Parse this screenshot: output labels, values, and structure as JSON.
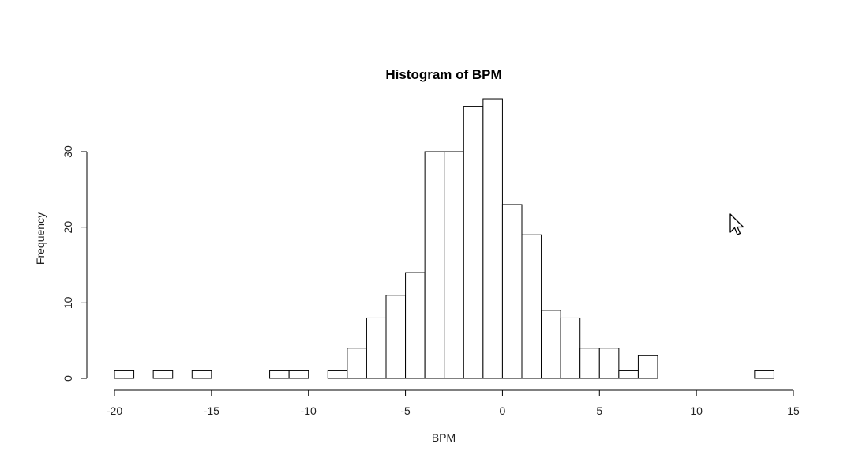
{
  "chart_data": {
    "type": "histogram",
    "title": "Histogram of BPM",
    "xlabel": "BPM",
    "ylabel": "Frequency",
    "bin_width": 1,
    "xlim": [
      -20,
      15
    ],
    "ylim": [
      0,
      37
    ],
    "x_ticks": [
      -20,
      -15,
      -10,
      -5,
      0,
      5,
      10,
      15
    ],
    "y_ticks": [
      0,
      10,
      20,
      30
    ],
    "bins": [
      {
        "start": -20,
        "end": -19,
        "count": 1
      },
      {
        "start": -19,
        "end": -18,
        "count": 0
      },
      {
        "start": -18,
        "end": -17,
        "count": 1
      },
      {
        "start": -17,
        "end": -16,
        "count": 0
      },
      {
        "start": -16,
        "end": -15,
        "count": 1
      },
      {
        "start": -15,
        "end": -14,
        "count": 0
      },
      {
        "start": -14,
        "end": -13,
        "count": 0
      },
      {
        "start": -13,
        "end": -12,
        "count": 0
      },
      {
        "start": -12,
        "end": -11,
        "count": 1
      },
      {
        "start": -11,
        "end": -10,
        "count": 1
      },
      {
        "start": -10,
        "end": -9,
        "count": 0
      },
      {
        "start": -9,
        "end": -8,
        "count": 1
      },
      {
        "start": -8,
        "end": -7,
        "count": 4
      },
      {
        "start": -7,
        "end": -6,
        "count": 8
      },
      {
        "start": -6,
        "end": -5,
        "count": 11
      },
      {
        "start": -5,
        "end": -4,
        "count": 14
      },
      {
        "start": -4,
        "end": -3,
        "count": 30
      },
      {
        "start": -3,
        "end": -2,
        "count": 30
      },
      {
        "start": -2,
        "end": -1,
        "count": 36
      },
      {
        "start": -1,
        "end": 0,
        "count": 37
      },
      {
        "start": 0,
        "end": 1,
        "count": 23
      },
      {
        "start": 1,
        "end": 2,
        "count": 19
      },
      {
        "start": 2,
        "end": 3,
        "count": 9
      },
      {
        "start": 3,
        "end": 4,
        "count": 8
      },
      {
        "start": 4,
        "end": 5,
        "count": 4
      },
      {
        "start": 5,
        "end": 6,
        "count": 4
      },
      {
        "start": 6,
        "end": 7,
        "count": 1
      },
      {
        "start": 7,
        "end": 8,
        "count": 3
      },
      {
        "start": 8,
        "end": 9,
        "count": 0
      },
      {
        "start": 9,
        "end": 10,
        "count": 0
      },
      {
        "start": 10,
        "end": 11,
        "count": 0
      },
      {
        "start": 11,
        "end": 12,
        "count": 0
      },
      {
        "start": 12,
        "end": 13,
        "count": 0
      },
      {
        "start": 13,
        "end": 14,
        "count": 1
      }
    ],
    "grid": false,
    "legend": "none",
    "bar_fill": "#ffffff",
    "bar_stroke": "#000000"
  },
  "cursor": {
    "icon": "mouse-pointer-icon"
  }
}
